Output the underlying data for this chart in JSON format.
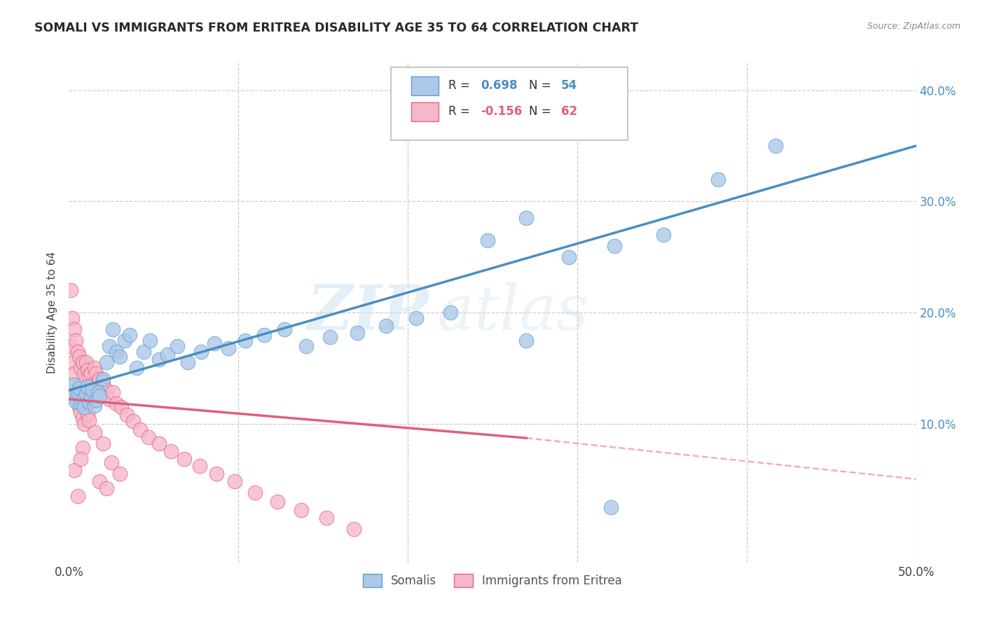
{
  "title": "SOMALI VS IMMIGRANTS FROM ERITREA DISABILITY AGE 35 TO 64 CORRELATION CHART",
  "source": "Source: ZipAtlas.com",
  "ylabel": "Disability Age 35 to 64",
  "xlim": [
    0.0,
    0.5
  ],
  "ylim": [
    -0.025,
    0.425
  ],
  "y_ticks": [
    0.1,
    0.2,
    0.3,
    0.4
  ],
  "y_tick_labels": [
    "10.0%",
    "20.0%",
    "30.0%",
    "40.0%"
  ],
  "x_tick_labels": [
    "0.0%",
    "50.0%"
  ],
  "x_tick_positions": [
    0.0,
    0.5
  ],
  "legend_labels": [
    "Somalis",
    "Immigrants from Eritrea"
  ],
  "R_somali": 0.698,
  "N_somali": 54,
  "R_eritrea": -0.156,
  "N_eritrea": 62,
  "somali_color": "#adc8e8",
  "eritrea_color": "#f5b8cb",
  "somali_edge_color": "#5a9fd4",
  "eritrea_edge_color": "#e8607a",
  "somali_line_color": "#4a8ec2",
  "eritrea_line_color": "#e0607a",
  "background_color": "#ffffff",
  "grid_color": "#cccccc",
  "watermark_zip": "ZIP",
  "watermark_atlas": "atlas",
  "somali_x": [
    0.001,
    0.002,
    0.003,
    0.004,
    0.005,
    0.006,
    0.007,
    0.008,
    0.009,
    0.01,
    0.011,
    0.012,
    0.013,
    0.014,
    0.015,
    0.016,
    0.017,
    0.018,
    0.02,
    0.022,
    0.024,
    0.026,
    0.028,
    0.03,
    0.033,
    0.036,
    0.04,
    0.044,
    0.048,
    0.053,
    0.058,
    0.064,
    0.07,
    0.078,
    0.086,
    0.094,
    0.104,
    0.115,
    0.127,
    0.14,
    0.154,
    0.17,
    0.187,
    0.205,
    0.225,
    0.247,
    0.27,
    0.295,
    0.322,
    0.351,
    0.383,
    0.417,
    0.27,
    0.32
  ],
  "somali_y": [
    0.13,
    0.125,
    0.135,
    0.12,
    0.128,
    0.132,
    0.118,
    0.122,
    0.115,
    0.127,
    0.133,
    0.119,
    0.124,
    0.13,
    0.116,
    0.121,
    0.128,
    0.125,
    0.14,
    0.155,
    0.17,
    0.185,
    0.165,
    0.16,
    0.175,
    0.18,
    0.15,
    0.165,
    0.175,
    0.158,
    0.162,
    0.17,
    0.155,
    0.165,
    0.172,
    0.168,
    0.175,
    0.18,
    0.185,
    0.17,
    0.178,
    0.182,
    0.188,
    0.195,
    0.2,
    0.265,
    0.175,
    0.25,
    0.26,
    0.27,
    0.32,
    0.35,
    0.285,
    0.025
  ],
  "eritrea_x": [
    0.001,
    0.001,
    0.002,
    0.002,
    0.003,
    0.003,
    0.004,
    0.004,
    0.005,
    0.005,
    0.006,
    0.006,
    0.007,
    0.007,
    0.008,
    0.008,
    0.009,
    0.009,
    0.01,
    0.01,
    0.011,
    0.011,
    0.012,
    0.012,
    0.013,
    0.014,
    0.015,
    0.016,
    0.017,
    0.018,
    0.019,
    0.02,
    0.022,
    0.024,
    0.026,
    0.028,
    0.031,
    0.034,
    0.038,
    0.042,
    0.047,
    0.053,
    0.06,
    0.068,
    0.077,
    0.087,
    0.098,
    0.11,
    0.123,
    0.137,
    0.152,
    0.168,
    0.015,
    0.02,
    0.025,
    0.03,
    0.018,
    0.022,
    0.008,
    0.003,
    0.005,
    0.007
  ],
  "eritrea_y": [
    0.22,
    0.17,
    0.195,
    0.155,
    0.185,
    0.145,
    0.175,
    0.13,
    0.165,
    0.12,
    0.16,
    0.115,
    0.15,
    0.11,
    0.155,
    0.105,
    0.145,
    0.1,
    0.155,
    0.118,
    0.148,
    0.108,
    0.143,
    0.103,
    0.145,
    0.135,
    0.15,
    0.145,
    0.138,
    0.14,
    0.132,
    0.138,
    0.13,
    0.122,
    0.128,
    0.118,
    0.115,
    0.108,
    0.102,
    0.095,
    0.088,
    0.082,
    0.075,
    0.068,
    0.062,
    0.055,
    0.048,
    0.038,
    0.03,
    0.022,
    0.015,
    0.005,
    0.092,
    0.082,
    0.065,
    0.055,
    0.048,
    0.042,
    0.078,
    0.058,
    0.035,
    0.068
  ]
}
